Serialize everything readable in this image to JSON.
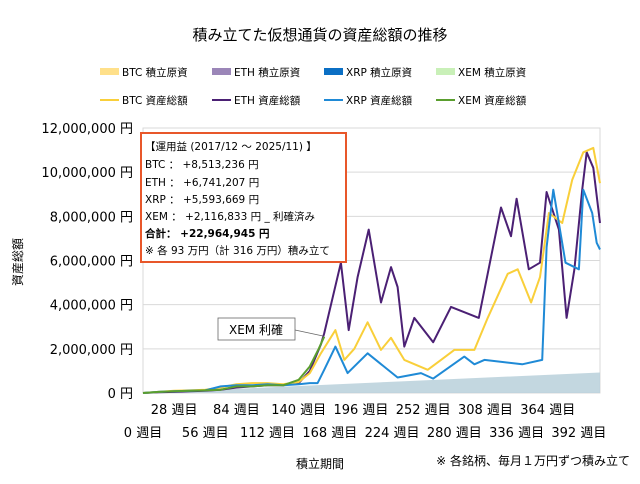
{
  "chart_data": {
    "type": "line",
    "title": "積み立てた仮想通貨の資産総額の推移",
    "xlabel": "積立期間",
    "ylabel": "資産総額",
    "footnote": "※ 各銘柄、毎月１万円ずつ積み立て",
    "ylim": [
      0,
      12000000
    ],
    "xlim": [
      0,
      411
    ],
    "grid": true,
    "legend_position": "top",
    "y_ticks": [
      {
        "value": 0,
        "label": "0 円"
      },
      {
        "value": 2000000,
        "label": "2,000,000 円"
      },
      {
        "value": 4000000,
        "label": "4,000,000 円"
      },
      {
        "value": 6000000,
        "label": "6,000,000 円"
      },
      {
        "value": 8000000,
        "label": "8,000,000 円"
      },
      {
        "value": 10000000,
        "label": "10,000,000 円"
      },
      {
        "value": 12000000,
        "label": "12,000,000 円"
      }
    ],
    "x_ticks": [
      {
        "value": 0,
        "label": "0 週目",
        "row": 2
      },
      {
        "value": 28,
        "label": "28 週目",
        "row": 1
      },
      {
        "value": 56,
        "label": "56 週目",
        "row": 2
      },
      {
        "value": 84,
        "label": "84 週目",
        "row": 1
      },
      {
        "value": 112,
        "label": "112 週目",
        "row": 2
      },
      {
        "value": 140,
        "label": "140 週目",
        "row": 1
      },
      {
        "value": 168,
        "label": "168 週目",
        "row": 2
      },
      {
        "value": 196,
        "label": "196 週目",
        "row": 1
      },
      {
        "value": 224,
        "label": "224 週目",
        "row": 2
      },
      {
        "value": 252,
        "label": "252 週目",
        "row": 1
      },
      {
        "value": 280,
        "label": "280 週目",
        "row": 2
      },
      {
        "value": 308,
        "label": "308 週目",
        "row": 1
      },
      {
        "value": 336,
        "label": "336 週目",
        "row": 2
      },
      {
        "value": 364,
        "label": "364 週目",
        "row": 1
      },
      {
        "value": 392,
        "label": "392 週目",
        "row": 2
      }
    ],
    "legend": [
      {
        "label": "BTC  積立原資",
        "color": "#ffe08a",
        "kind": "area"
      },
      {
        "label": "ETH  積立原資",
        "color": "#9b86b8",
        "kind": "area"
      },
      {
        "label": "XRP  積立原資",
        "color": "#0b6fc4",
        "kind": "area"
      },
      {
        "label": "XEM  積立原資",
        "color": "#c9f0b8",
        "kind": "area"
      },
      {
        "label": "BTC  資産総額",
        "color": "#f9cf3a",
        "kind": "line"
      },
      {
        "label": "ETH  資産総額",
        "color": "#4b2074",
        "kind": "line"
      },
      {
        "label": "XRP  資産総額",
        "color": "#1f8ad6",
        "kind": "line"
      },
      {
        "label": "XEM  資産総額",
        "color": "#5a9e2e",
        "kind": "line"
      }
    ],
    "cost_basis": {
      "x": [
        0,
        411
      ],
      "y": [
        0,
        930000
      ],
      "color": "#b9d0da"
    },
    "series": [
      {
        "name": "BTC  資産総額",
        "color": "#f9cf3a",
        "x": [
          0,
          14,
          28,
          42,
          56,
          70,
          84,
          98,
          112,
          126,
          140,
          150,
          160,
          173,
          181,
          190,
          202,
          214,
          223,
          235,
          256,
          268,
          280,
          298,
          310,
          328,
          337,
          349,
          357,
          365,
          377,
          386,
          396,
          405,
          411
        ],
        "y": [
          0,
          50000,
          100000,
          120000,
          150000,
          250000,
          400000,
          450000,
          450000,
          400000,
          500000,
          900000,
          1800000,
          2850000,
          1500000,
          2000000,
          3200000,
          1950000,
          2500000,
          1500000,
          1050000,
          1500000,
          1950000,
          1950000,
          3400000,
          5400000,
          5600000,
          4100000,
          5250000,
          8150000,
          7700000,
          9650000,
          10900000,
          11100000,
          9500000
        ]
      },
      {
        "name": "ETH  資産総額",
        "color": "#4b2074",
        "x": [
          0,
          14,
          28,
          42,
          56,
          70,
          84,
          98,
          112,
          126,
          140,
          150,
          160,
          163,
          178,
          185,
          193,
          203,
          214,
          223,
          229,
          235,
          244,
          261,
          277,
          302,
          322,
          331,
          336,
          347,
          357,
          363,
          374,
          381,
          388,
          395,
          399,
          405,
          411
        ],
        "y": [
          0,
          30000,
          50000,
          80000,
          100000,
          150000,
          250000,
          300000,
          350000,
          350000,
          450000,
          1000000,
          2200000,
          2700000,
          5900000,
          2850000,
          5250000,
          7400000,
          4100000,
          5700000,
          4800000,
          2100000,
          3400000,
          2300000,
          3900000,
          3400000,
          8400000,
          7100000,
          8800000,
          5600000,
          5900000,
          9100000,
          7400000,
          3400000,
          5600000,
          9200000,
          10900000,
          10200000,
          7700000
        ]
      },
      {
        "name": "XRP  資産総額",
        "color": "#1f8ad6",
        "x": [
          0,
          14,
          28,
          42,
          56,
          70,
          84,
          98,
          112,
          126,
          140,
          150,
          157,
          163,
          173,
          184,
          202,
          229,
          250,
          261,
          289,
          298,
          307,
          341,
          359,
          363,
          369,
          380,
          392,
          396,
          404,
          408,
          411
        ],
        "y": [
          0,
          50000,
          80000,
          100000,
          120000,
          300000,
          350000,
          350000,
          400000,
          350000,
          400000,
          450000,
          450000,
          1050000,
          2100000,
          900000,
          1800000,
          700000,
          900000,
          650000,
          1650000,
          1300000,
          1500000,
          1300000,
          1500000,
          6600000,
          9200000,
          5900000,
          5600000,
          9200000,
          8150000,
          6800000,
          6500000
        ]
      },
      {
        "name": "XEM  資産総額",
        "color": "#5a9e2e",
        "x": [
          0,
          14,
          28,
          42,
          56,
          70,
          84,
          98,
          112,
          126,
          140,
          150,
          158,
          163
        ],
        "y": [
          0,
          50000,
          80000,
          100000,
          120000,
          150000,
          300000,
          300000,
          350000,
          350000,
          600000,
          1200000,
          2000000,
          2550000
        ]
      }
    ],
    "annotations": {
      "profit_box": {
        "heading": "【運用益 (2017/12 ～ 2025/11) 】",
        "lines": [
          "BTC ： +8,513,236 円",
          "ETH ： +6,741,207 円",
          "XRP ： +5,593,669 円",
          "XEM ： +2,116,833 円 _ 利確済み"
        ],
        "total": "合計： +22,964,945 円",
        "note": "※ 各 93 万円（計 316 万円）積み立て",
        "border_color": "#e8572a"
      },
      "xem_callout": {
        "label": "XEM 利確",
        "x": 163,
        "y": 2550000
      }
    }
  }
}
